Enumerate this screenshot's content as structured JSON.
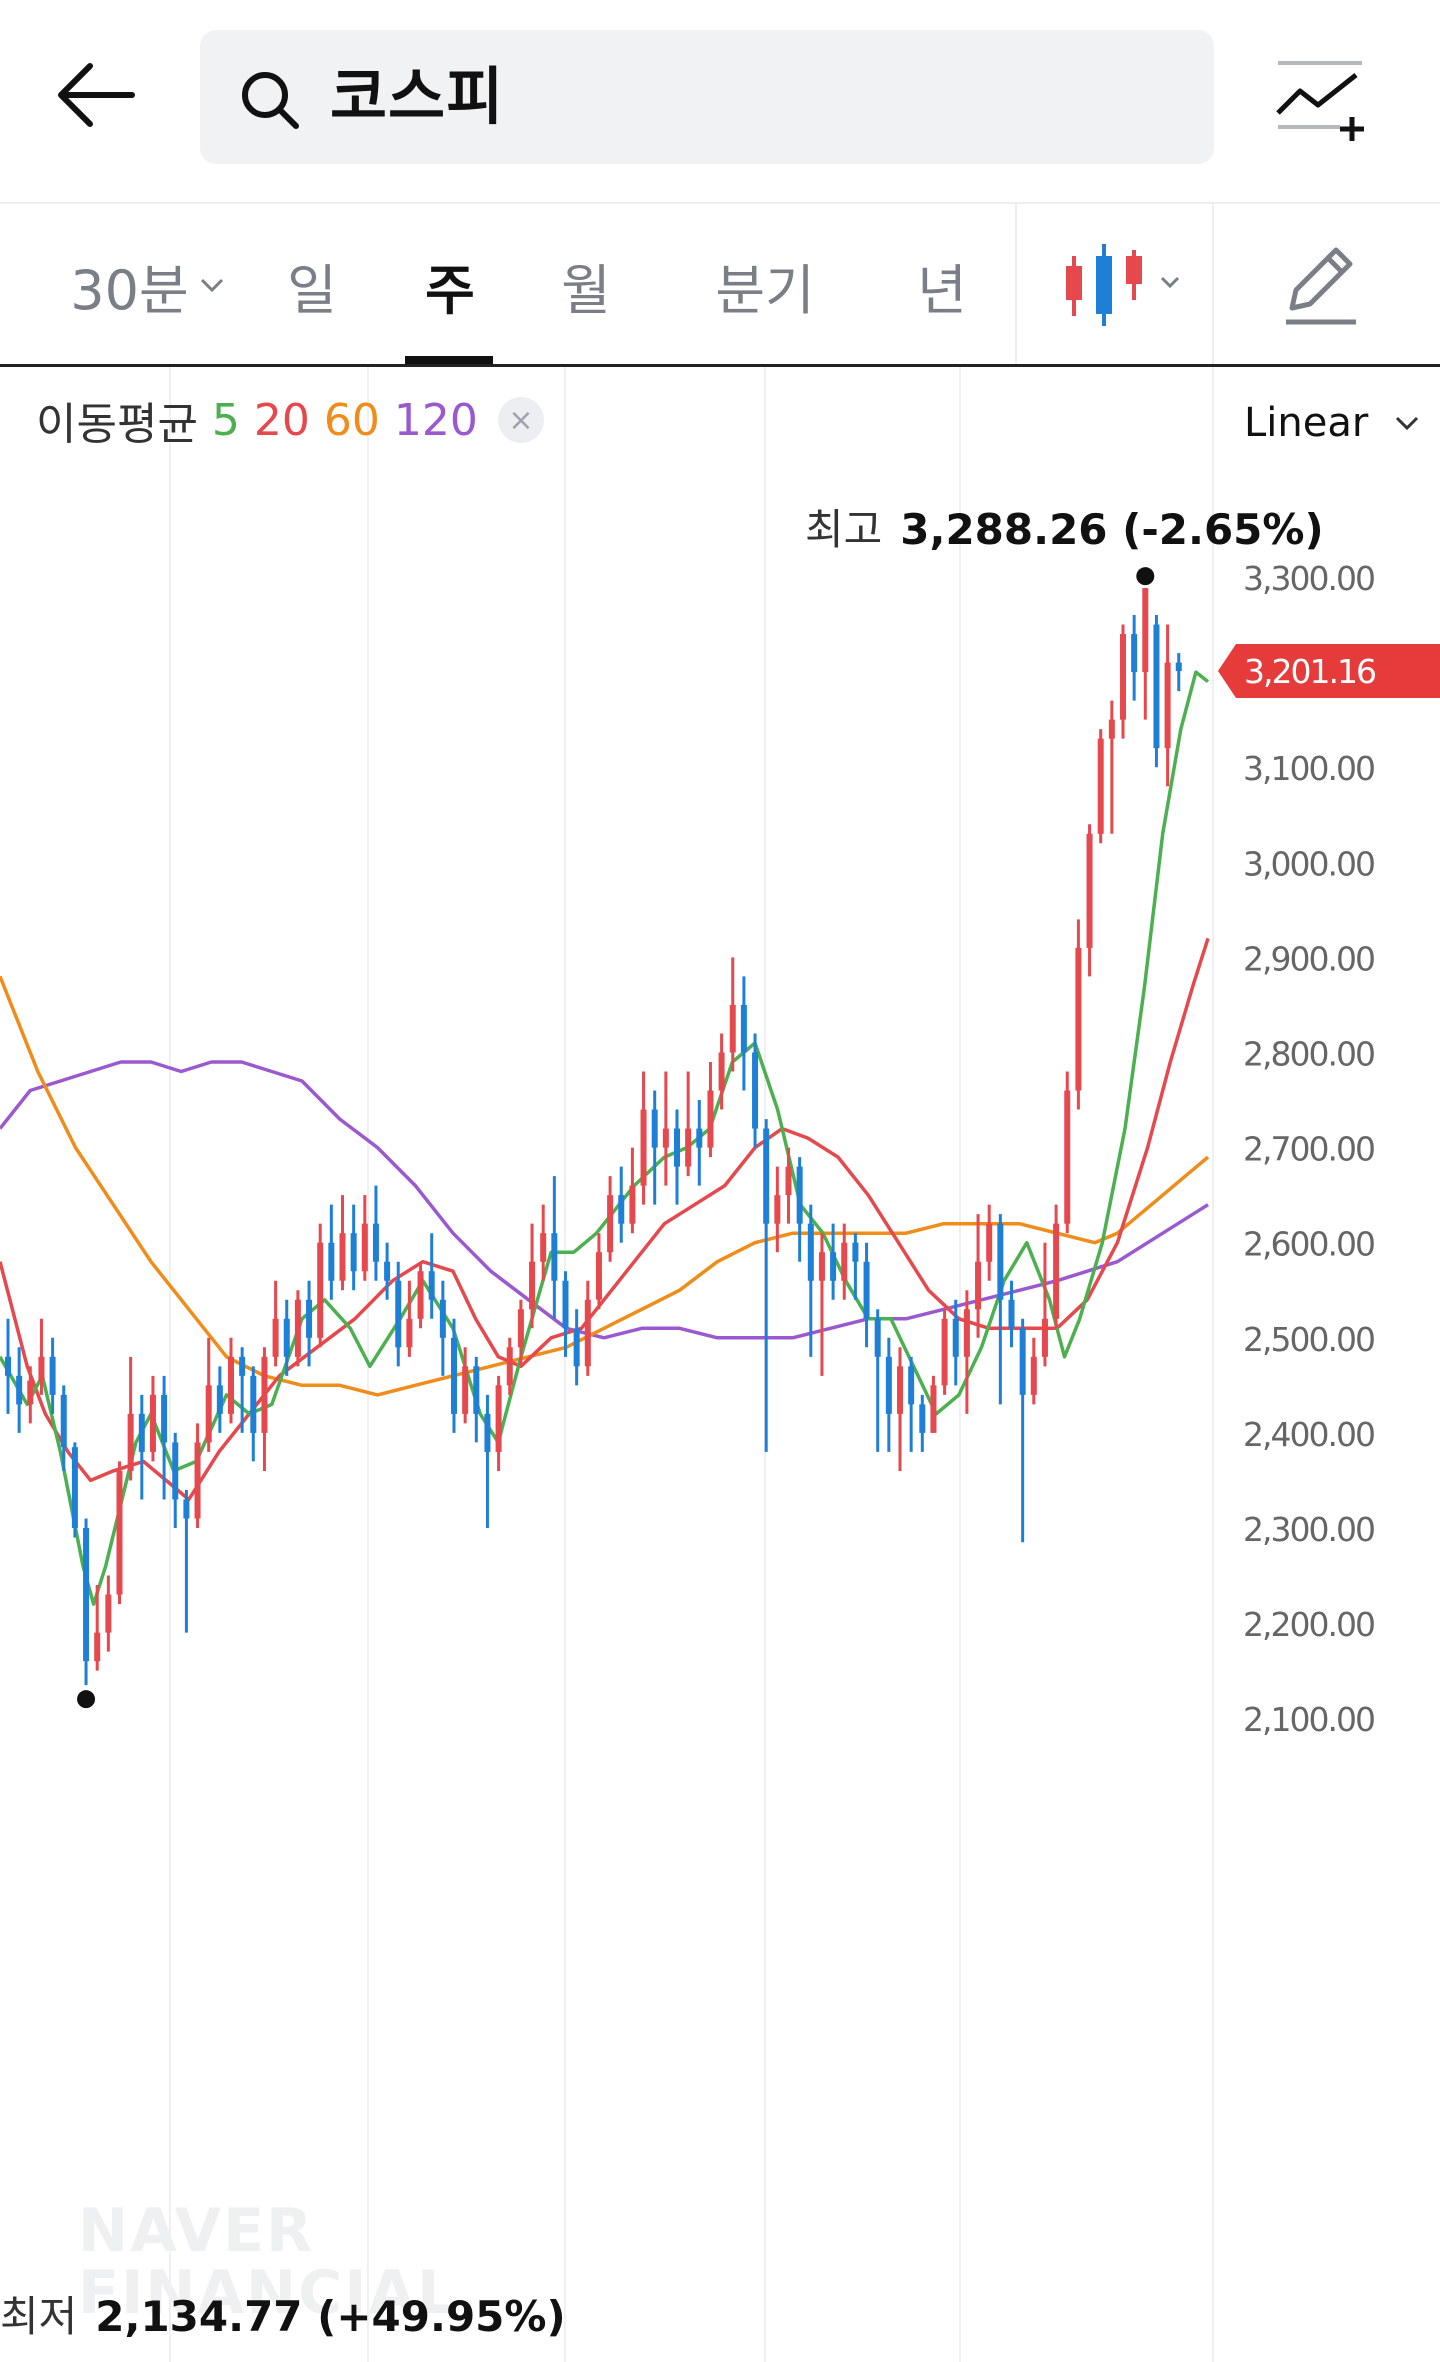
{
  "search": {
    "query": "코스피"
  },
  "tabs": [
    {
      "label": "30분",
      "has_dropdown": true
    },
    {
      "label": "일"
    },
    {
      "label": "주",
      "active": true
    },
    {
      "label": "월"
    },
    {
      "label": "분기"
    },
    {
      "label": "년"
    }
  ],
  "legend": {
    "label": "이동평균",
    "periods": [
      {
        "value": "5",
        "color": "#4caf50"
      },
      {
        "value": "20",
        "color": "#e5484d"
      },
      {
        "value": "60",
        "color": "#f08c1a"
      },
      {
        "value": "120",
        "color": "#9b59d0"
      }
    ],
    "close_glyph": "×"
  },
  "scale": {
    "label": "Linear"
  },
  "high": {
    "label": "최고",
    "value": "3,288.26 (-2.65%)",
    "price": 3288.26
  },
  "low": {
    "label": "최저",
    "value": "2,134.77 (+49.95%)",
    "price": 2134.77
  },
  "current_price": {
    "label": "3,201.16",
    "value": 3201.16
  },
  "watermark": [
    "NAVER",
    "FINANCIAL"
  ],
  "colors": {
    "up": "#e5484d",
    "down": "#1e7fd6",
    "current_badge": "#e63b3b",
    "grid": "#eef0f3",
    "axis_text": "#666666"
  },
  "icons": [
    "back-arrow-icon",
    "search-icon",
    "compare-chart-icon",
    "chevron-down-icon",
    "candlestick-icon",
    "pencil-icon"
  ],
  "chart_data": {
    "type": "candlestick",
    "y_axis": {
      "range": [
        2080,
        3340
      ],
      "ticks": [
        "3,300.00",
        "3,100.00",
        "3,000.00",
        "2,900.00",
        "2,800.00",
        "2,700.00",
        "2,600.00",
        "2,500.00",
        "2,400.00",
        "2,300.00",
        "2,200.00",
        "2,100.00"
      ],
      "tick_values": [
        3300,
        3100,
        3000,
        2900,
        2800,
        2700,
        2600,
        2500,
        2400,
        2300,
        2200,
        2100
      ]
    },
    "candles": [
      [
        2480,
        2460,
        2520,
        2420
      ],
      [
        2460,
        2430,
        2490,
        2400
      ],
      [
        2430,
        2455,
        2470,
        2410
      ],
      [
        2455,
        2480,
        2520,
        2440
      ],
      [
        2480,
        2440,
        2500,
        2420
      ],
      [
        2440,
        2385,
        2450,
        2360
      ],
      [
        2385,
        2300,
        2390,
        2290
      ],
      [
        2300,
        2160,
        2310,
        2134.77
      ],
      [
        2160,
        2190,
        2240,
        2150
      ],
      [
        2190,
        2230,
        2250,
        2170
      ],
      [
        2230,
        2360,
        2370,
        2220
      ],
      [
        2360,
        2420,
        2480,
        2350
      ],
      [
        2420,
        2380,
        2440,
        2330
      ],
      [
        2380,
        2440,
        2460,
        2370
      ],
      [
        2440,
        2390,
        2460,
        2330
      ],
      [
        2390,
        2330,
        2400,
        2300
      ],
      [
        2330,
        2310,
        2340,
        2190
      ],
      [
        2310,
        2390,
        2410,
        2300
      ],
      [
        2390,
        2450,
        2500,
        2380
      ],
      [
        2450,
        2420,
        2470,
        2400
      ],
      [
        2420,
        2480,
        2500,
        2410
      ],
      [
        2480,
        2460,
        2490,
        2400
      ],
      [
        2460,
        2400,
        2470,
        2370
      ],
      [
        2400,
        2480,
        2490,
        2360
      ],
      [
        2480,
        2520,
        2560,
        2470
      ],
      [
        2520,
        2480,
        2540,
        2460
      ],
      [
        2480,
        2540,
        2550,
        2470
      ],
      [
        2540,
        2500,
        2560,
        2470
      ],
      [
        2500,
        2600,
        2620,
        2490
      ],
      [
        2600,
        2560,
        2640,
        2540
      ],
      [
        2560,
        2610,
        2650,
        2550
      ],
      [
        2610,
        2570,
        2640,
        2550
      ],
      [
        2570,
        2620,
        2650,
        2560
      ],
      [
        2620,
        2580,
        2660,
        2560
      ],
      [
        2580,
        2560,
        2600,
        2540
      ],
      [
        2560,
        2490,
        2580,
        2470
      ],
      [
        2490,
        2520,
        2560,
        2480
      ],
      [
        2520,
        2570,
        2580,
        2510
      ],
      [
        2570,
        2540,
        2610,
        2520
      ],
      [
        2540,
        2500,
        2560,
        2460
      ],
      [
        2500,
        2420,
        2520,
        2400
      ],
      [
        2420,
        2470,
        2490,
        2410
      ],
      [
        2470,
        2420,
        2480,
        2390
      ],
      [
        2420,
        2380,
        2440,
        2300
      ],
      [
        2380,
        2450,
        2460,
        2360
      ],
      [
        2450,
        2490,
        2500,
        2440
      ],
      [
        2490,
        2530,
        2540,
        2470
      ],
      [
        2530,
        2580,
        2620,
        2510
      ],
      [
        2580,
        2610,
        2640,
        2560
      ],
      [
        2610,
        2560,
        2670,
        2520
      ],
      [
        2560,
        2510,
        2570,
        2480
      ],
      [
        2510,
        2470,
        2530,
        2450
      ],
      [
        2470,
        2540,
        2560,
        2460
      ],
      [
        2540,
        2590,
        2610,
        2530
      ],
      [
        2590,
        2650,
        2670,
        2580
      ],
      [
        2650,
        2620,
        2680,
        2600
      ],
      [
        2620,
        2660,
        2700,
        2610
      ],
      [
        2660,
        2740,
        2780,
        2640
      ],
      [
        2740,
        2700,
        2760,
        2640
      ],
      [
        2700,
        2720,
        2780,
        2660
      ],
      [
        2720,
        2680,
        2740,
        2640
      ],
      [
        2680,
        2720,
        2780,
        2670
      ],
      [
        2720,
        2700,
        2750,
        2660
      ],
      [
        2700,
        2760,
        2790,
        2690
      ],
      [
        2760,
        2800,
        2820,
        2740
      ],
      [
        2800,
        2850,
        2900,
        2780
      ],
      [
        2850,
        2800,
        2880,
        2760
      ],
      [
        2800,
        2720,
        2820,
        2700
      ],
      [
        2720,
        2620,
        2730,
        2380
      ],
      [
        2620,
        2650,
        2680,
        2590
      ],
      [
        2650,
        2680,
        2700,
        2620
      ],
      [
        2680,
        2620,
        2690,
        2580
      ],
      [
        2620,
        2560,
        2640,
        2480
      ],
      [
        2560,
        2590,
        2610,
        2460
      ],
      [
        2590,
        2560,
        2620,
        2540
      ],
      [
        2560,
        2600,
        2620,
        2540
      ],
      [
        2600,
        2580,
        2610,
        2540
      ],
      [
        2580,
        2520,
        2600,
        2490
      ],
      [
        2520,
        2480,
        2530,
        2380
      ],
      [
        2480,
        2420,
        2500,
        2380
      ],
      [
        2420,
        2470,
        2490,
        2360
      ],
      [
        2470,
        2430,
        2480,
        2380
      ],
      [
        2430,
        2400,
        2440,
        2380
      ],
      [
        2400,
        2450,
        2460,
        2420
      ],
      [
        2450,
        2520,
        2530,
        2440
      ],
      [
        2520,
        2480,
        2540,
        2450
      ],
      [
        2480,
        2530,
        2550,
        2420
      ],
      [
        2530,
        2580,
        2630,
        2500
      ],
      [
        2580,
        2620,
        2640,
        2560
      ],
      [
        2620,
        2540,
        2630,
        2430
      ],
      [
        2540,
        2510,
        2560,
        2490
      ],
      [
        2510,
        2440,
        2520,
        2285
      ],
      [
        2440,
        2480,
        2500,
        2430
      ],
      [
        2480,
        2520,
        2600,
        2470
      ],
      [
        2520,
        2620,
        2640,
        2510
      ],
      [
        2620,
        2760,
        2780,
        2610
      ],
      [
        2760,
        2910,
        2940,
        2740
      ],
      [
        2910,
        3030,
        3040,
        2880
      ],
      [
        3030,
        3130,
        3140,
        3020
      ],
      [
        3130,
        3150,
        3170,
        3030
      ],
      [
        3150,
        3240,
        3250,
        3130
      ],
      [
        3240,
        3200,
        3260,
        3170
      ],
      [
        3200,
        3288.26,
        3288.26,
        3150
      ],
      [
        3250,
        3120,
        3260,
        3100
      ],
      [
        3120,
        3210,
        3250,
        3080
      ],
      [
        3210,
        3201.16,
        3220,
        3180
      ]
    ],
    "moving_averages": {
      "5": [
        [
          0,
          2480
        ],
        [
          18,
          2430
        ],
        [
          28,
          2460
        ],
        [
          40,
          2380
        ],
        [
          55,
          2260
        ],
        [
          62,
          2220
        ],
        [
          70,
          2260
        ],
        [
          90,
          2390
        ],
        [
          100,
          2420
        ],
        [
          115,
          2360
        ],
        [
          130,
          2370
        ],
        [
          150,
          2440
        ],
        [
          165,
          2420
        ],
        [
          180,
          2430
        ],
        [
          200,
          2520
        ],
        [
          215,
          2540
        ],
        [
          232,
          2510
        ],
        [
          245,
          2470
        ],
        [
          265,
          2520
        ],
        [
          280,
          2560
        ],
        [
          300,
          2510
        ],
        [
          318,
          2420
        ],
        [
          330,
          2390
        ],
        [
          345,
          2480
        ],
        [
          365,
          2590
        ],
        [
          380,
          2590
        ],
        [
          395,
          2610
        ],
        [
          420,
          2660
        ],
        [
          440,
          2690
        ],
        [
          455,
          2700
        ],
        [
          470,
          2720
        ],
        [
          485,
          2790
        ],
        [
          500,
          2810
        ],
        [
          515,
          2740
        ],
        [
          530,
          2640
        ],
        [
          545,
          2610
        ],
        [
          560,
          2560
        ],
        [
          575,
          2520
        ],
        [
          590,
          2520
        ],
        [
          605,
          2470
        ],
        [
          620,
          2420
        ],
        [
          635,
          2440
        ],
        [
          650,
          2490
        ],
        [
          665,
          2560
        ],
        [
          680,
          2600
        ],
        [
          695,
          2540
        ],
        [
          705,
          2480
        ],
        [
          715,
          2520
        ],
        [
          730,
          2600
        ],
        [
          745,
          2720
        ],
        [
          758,
          2870
        ],
        [
          770,
          3030
        ],
        [
          782,
          3140
        ],
        [
          792,
          3200
        ],
        [
          800,
          3190
        ]
      ],
      "20": [
        [
          0,
          2580
        ],
        [
          18,
          2470
        ],
        [
          30,
          2420
        ],
        [
          45,
          2380
        ],
        [
          60,
          2350
        ],
        [
          75,
          2360
        ],
        [
          95,
          2370
        ],
        [
          110,
          2350
        ],
        [
          125,
          2330
        ],
        [
          145,
          2380
        ],
        [
          165,
          2420
        ],
        [
          185,
          2460
        ],
        [
          210,
          2490
        ],
        [
          235,
          2520
        ],
        [
          260,
          2560
        ],
        [
          280,
          2580
        ],
        [
          300,
          2570
        ],
        [
          315,
          2520
        ],
        [
          330,
          2480
        ],
        [
          345,
          2470
        ],
        [
          365,
          2500
        ],
        [
          385,
          2510
        ],
        [
          400,
          2540
        ],
        [
          420,
          2580
        ],
        [
          440,
          2620
        ],
        [
          460,
          2640
        ],
        [
          480,
          2660
        ],
        [
          500,
          2700
        ],
        [
          518,
          2720
        ],
        [
          535,
          2710
        ],
        [
          555,
          2690
        ],
        [
          575,
          2650
        ],
        [
          595,
          2600
        ],
        [
          615,
          2550
        ],
        [
          635,
          2520
        ],
        [
          655,
          2510
        ],
        [
          675,
          2510
        ],
        [
          700,
          2510
        ],
        [
          720,
          2540
        ],
        [
          740,
          2600
        ],
        [
          760,
          2700
        ],
        [
          775,
          2790
        ],
        [
          790,
          2870
        ],
        [
          800,
          2920
        ]
      ],
      "60": [
        [
          0,
          2880
        ],
        [
          25,
          2780
        ],
        [
          50,
          2700
        ],
        [
          75,
          2640
        ],
        [
          100,
          2580
        ],
        [
          125,
          2530
        ],
        [
          150,
          2480
        ],
        [
          175,
          2460
        ],
        [
          200,
          2450
        ],
        [
          225,
          2450
        ],
        [
          250,
          2440
        ],
        [
          275,
          2450
        ],
        [
          300,
          2460
        ],
        [
          325,
          2470
        ],
        [
          350,
          2480
        ],
        [
          375,
          2490
        ],
        [
          400,
          2510
        ],
        [
          425,
          2530
        ],
        [
          450,
          2550
        ],
        [
          475,
          2580
        ],
        [
          500,
          2600
        ],
        [
          525,
          2610
        ],
        [
          550,
          2610
        ],
        [
          575,
          2610
        ],
        [
          600,
          2610
        ],
        [
          625,
          2620
        ],
        [
          650,
          2620
        ],
        [
          675,
          2620
        ],
        [
          700,
          2610
        ],
        [
          725,
          2600
        ],
        [
          740,
          2610
        ],
        [
          755,
          2630
        ],
        [
          770,
          2650
        ],
        [
          785,
          2670
        ],
        [
          800,
          2690
        ]
      ],
      "120": [
        [
          0,
          2720
        ],
        [
          20,
          2760
        ],
        [
          40,
          2770
        ],
        [
          60,
          2780
        ],
        [
          80,
          2790
        ],
        [
          100,
          2790
        ],
        [
          120,
          2780
        ],
        [
          140,
          2790
        ],
        [
          160,
          2790
        ],
        [
          180,
          2780
        ],
        [
          200,
          2770
        ],
        [
          225,
          2730
        ],
        [
          250,
          2700
        ],
        [
          275,
          2660
        ],
        [
          300,
          2610
        ],
        [
          325,
          2570
        ],
        [
          350,
          2540
        ],
        [
          375,
          2510
        ],
        [
          400,
          2500
        ],
        [
          425,
          2510
        ],
        [
          450,
          2510
        ],
        [
          475,
          2500
        ],
        [
          500,
          2500
        ],
        [
          525,
          2500
        ],
        [
          550,
          2510
        ],
        [
          575,
          2520
        ],
        [
          600,
          2520
        ],
        [
          625,
          2530
        ],
        [
          650,
          2540
        ],
        [
          675,
          2550
        ],
        [
          700,
          2560
        ],
        [
          720,
          2570
        ],
        [
          740,
          2580
        ],
        [
          760,
          2600
        ],
        [
          780,
          2620
        ],
        [
          800,
          2640
        ]
      ]
    }
  }
}
